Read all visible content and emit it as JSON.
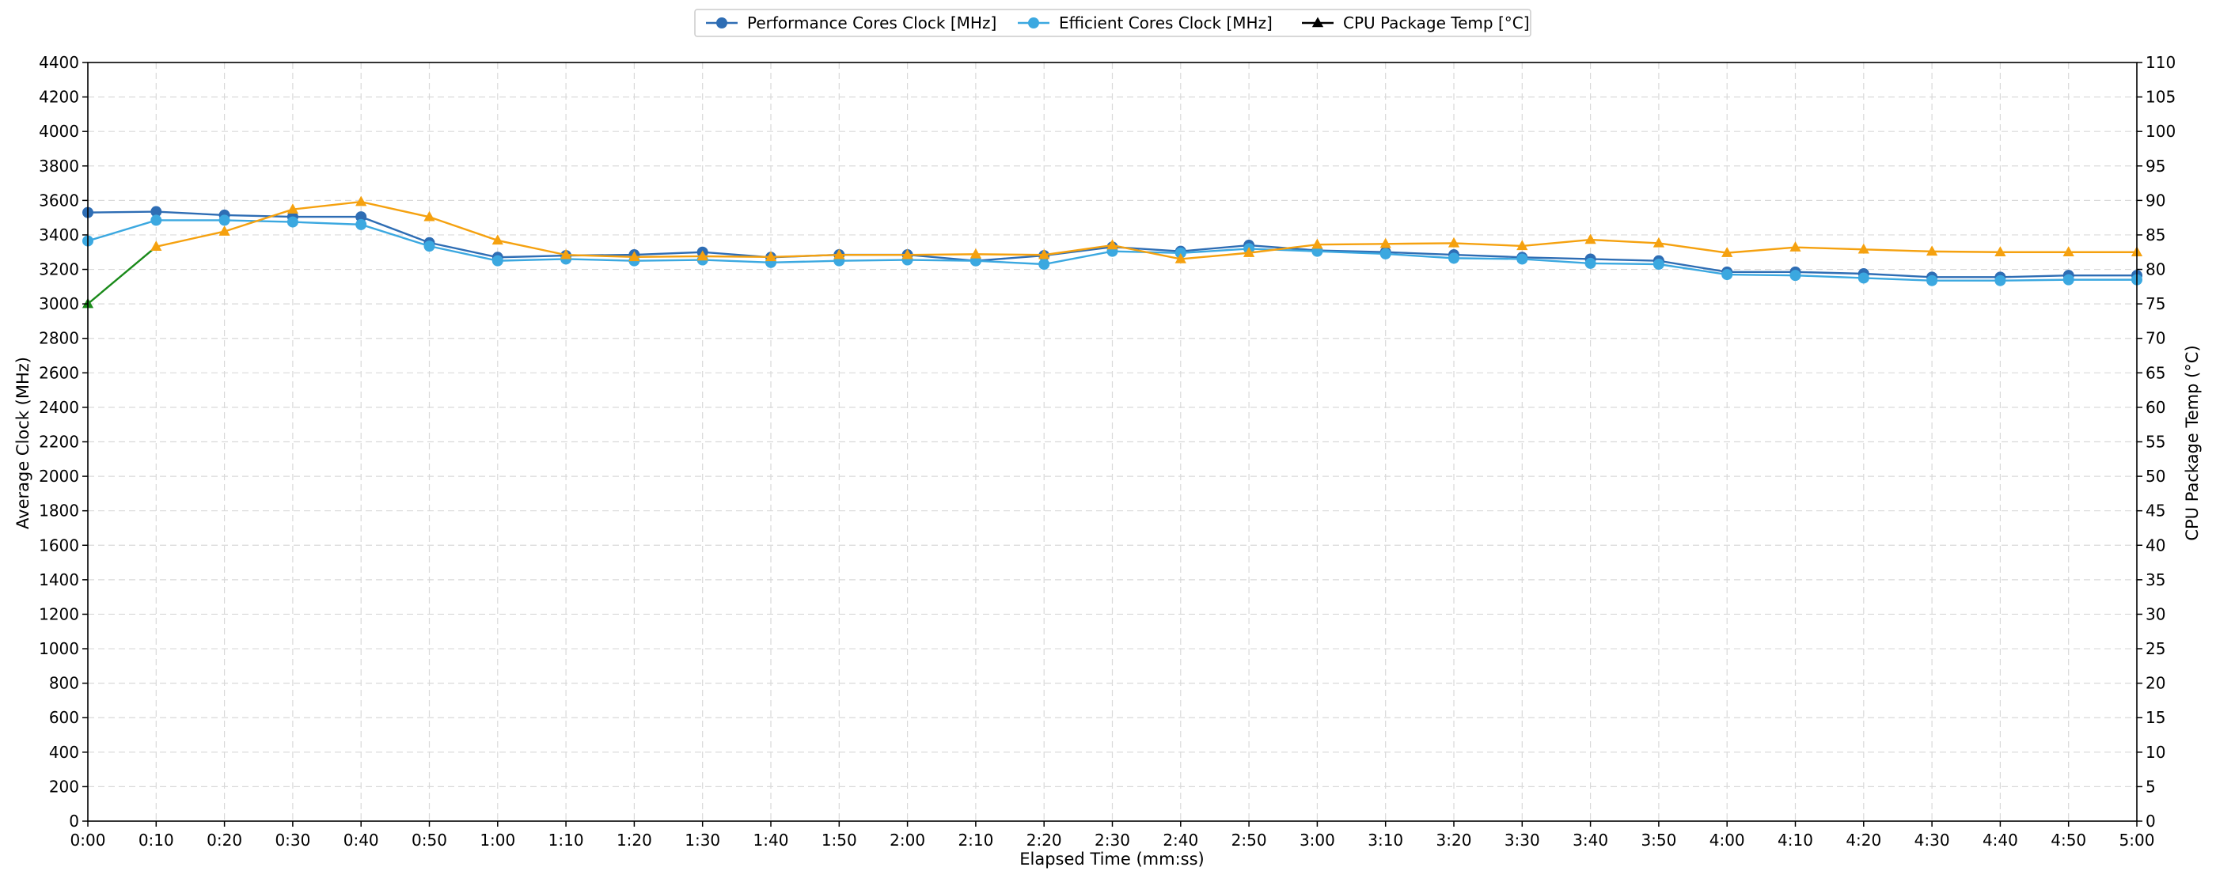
{
  "chart_data": {
    "type": "line",
    "title": "",
    "xlabel": "Elapsed Time (mm:ss)",
    "ylabel": "Average Clock (MHz)",
    "y2label": "CPU Package Temp (°C)",
    "ylim": [
      0,
      4400
    ],
    "y2lim": [
      0,
      110
    ],
    "yticks": [
      0,
      200,
      400,
      600,
      800,
      1000,
      1200,
      1400,
      1600,
      1800,
      2000,
      2200,
      2400,
      2600,
      2800,
      3000,
      3200,
      3400,
      3600,
      3800,
      4000,
      4200,
      4400
    ],
    "y2ticks": [
      0,
      5,
      10,
      15,
      20,
      25,
      30,
      35,
      40,
      45,
      50,
      55,
      60,
      65,
      70,
      75,
      80,
      85,
      90,
      95,
      100,
      105,
      110
    ],
    "grid": true,
    "legend_position": "top-center",
    "categories": [
      "0:00",
      "0:10",
      "0:20",
      "0:30",
      "0:40",
      "0:50",
      "1:00",
      "1:10",
      "1:20",
      "1:30",
      "1:40",
      "1:50",
      "2:00",
      "2:10",
      "2:20",
      "2:30",
      "2:40",
      "2:50",
      "3:00",
      "3:10",
      "3:20",
      "3:30",
      "3:40",
      "3:50",
      "4:00",
      "4:10",
      "4:20",
      "4:30",
      "4:40",
      "4:50",
      "5:00"
    ],
    "series": [
      {
        "name": "Performance Cores Clock [MHz]",
        "axis": "left",
        "color": "#2e6db4",
        "marker": "circle",
        "values": [
          3530,
          3535,
          3515,
          3505,
          3505,
          3355,
          3270,
          3280,
          3285,
          3300,
          3270,
          3285,
          3285,
          3250,
          3280,
          3330,
          3305,
          3340,
          3310,
          3300,
          3285,
          3270,
          3260,
          3250,
          3185,
          3185,
          3175,
          3155,
          3155,
          3165,
          3165
        ]
      },
      {
        "name": "Efficient Cores Clock [MHz]",
        "axis": "left",
        "color": "#3ba8e0",
        "marker": "circle",
        "values": [
          3365,
          3485,
          3485,
          3475,
          3460,
          3335,
          3250,
          3260,
          3250,
          3255,
          3240,
          3250,
          3255,
          3250,
          3230,
          3305,
          3295,
          3320,
          3305,
          3290,
          3265,
          3260,
          3235,
          3230,
          3170,
          3165,
          3150,
          3135,
          3135,
          3140,
          3140
        ]
      },
      {
        "name": "CPU Package Temp [°C]",
        "axis": "right",
        "color": "#f5a10f",
        "start_color": "#1a8a1a",
        "marker": "triangle",
        "legend_color": "#000000",
        "values": [
          75,
          83.3,
          85.5,
          88.7,
          89.8,
          87.6,
          84.2,
          82.1,
          81.8,
          81.9,
          81.8,
          82.1,
          82.1,
          82.2,
          82.1,
          83.5,
          81.5,
          82.4,
          83.6,
          83.7,
          83.8,
          83.4,
          84.3,
          83.8,
          82.4,
          83.2,
          82.9,
          82.6,
          82.5,
          82.5,
          82.5
        ]
      }
    ]
  }
}
